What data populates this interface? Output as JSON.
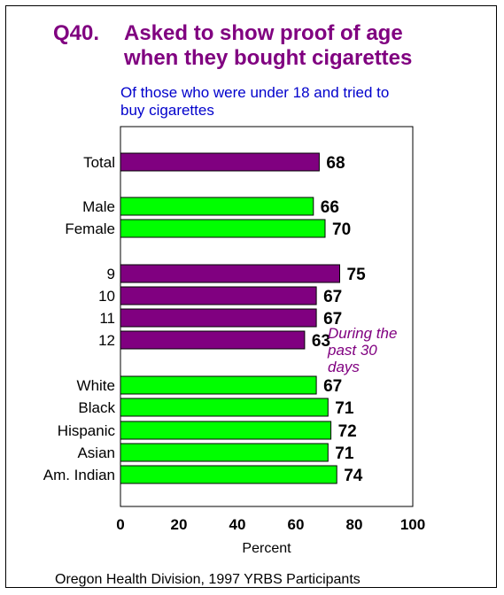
{
  "title": {
    "question": "Q40.",
    "line1": "Asked to show proof of age",
    "line2": "when they bought cigarettes"
  },
  "subtitle": {
    "line1": "Of  those who  were under 18 and tried to",
    "line2": "buy cigarettes"
  },
  "annotation": {
    "line1": "During the",
    "line2": "past  30",
    "line3": "days"
  },
  "source": "Oregon Health Division, 1997 YRBS Participants",
  "colors": {
    "purple": "#800080",
    "green": "#00ff00",
    "blue": "#0000cc"
  },
  "chart_data": {
    "type": "bar",
    "orientation": "horizontal",
    "xlabel": "Percent",
    "xlim": [
      0,
      100
    ],
    "xticks": [
      0,
      20,
      40,
      60,
      80,
      100
    ],
    "grid": false,
    "categories": [
      "Total",
      "Male",
      "Female",
      "9",
      "10",
      "11",
      "12",
      "White",
      "Black",
      "Hispanic",
      "Asian",
      "Am. Indian"
    ],
    "values": [
      68,
      66,
      70,
      75,
      67,
      67,
      63,
      67,
      71,
      72,
      71,
      74
    ],
    "bar_colors": [
      "purple",
      "green",
      "green",
      "purple",
      "purple",
      "purple",
      "purple",
      "green",
      "green",
      "green",
      "green",
      "green"
    ]
  }
}
